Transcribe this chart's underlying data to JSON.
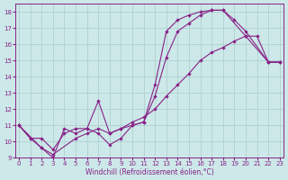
{
  "xlabel": "Windchill (Refroidissement éolien,°C)",
  "bg_color": "#cce8e8",
  "grid_color": "#aacccc",
  "line_color": "#882288",
  "xlim": [
    -0.3,
    23.3
  ],
  "ylim": [
    9.0,
    18.5
  ],
  "xticks": [
    0,
    1,
    2,
    3,
    4,
    5,
    6,
    7,
    8,
    9,
    10,
    11,
    12,
    13,
    14,
    15,
    16,
    17,
    18,
    19,
    20,
    21,
    22,
    23
  ],
  "yticks": [
    9,
    10,
    11,
    12,
    13,
    14,
    15,
    16,
    17,
    18
  ],
  "curve1_x": [
    0,
    1,
    2,
    3,
    4,
    5,
    6,
    7,
    8,
    9,
    10,
    11,
    12,
    13,
    14,
    15,
    16,
    17,
    18,
    20,
    22,
    23
  ],
  "curve1_y": [
    11.0,
    10.2,
    9.6,
    9.0,
    10.8,
    10.5,
    10.8,
    12.5,
    10.5,
    10.8,
    11.0,
    11.2,
    13.5,
    16.8,
    17.5,
    17.8,
    18.0,
    18.1,
    18.1,
    16.5,
    14.9,
    14.9
  ],
  "curve2_x": [
    0,
    1,
    2,
    3,
    4,
    5,
    6,
    7,
    8,
    9,
    10,
    11,
    12,
    13,
    14,
    15,
    16,
    17,
    18,
    19,
    20,
    22,
    23
  ],
  "curve2_y": [
    11.0,
    10.2,
    10.2,
    9.5,
    10.5,
    10.8,
    10.8,
    10.5,
    9.8,
    10.2,
    11.0,
    11.2,
    12.8,
    15.2,
    16.8,
    17.3,
    17.8,
    18.1,
    18.1,
    17.5,
    16.8,
    14.9,
    14.9
  ],
  "curve3_x": [
    0,
    2,
    3,
    5,
    6,
    7,
    8,
    9,
    10,
    11,
    12,
    13,
    14,
    15,
    16,
    17,
    18,
    19,
    20,
    21,
    22,
    23
  ],
  "curve3_y": [
    11.0,
    9.6,
    9.2,
    10.2,
    10.5,
    10.8,
    10.5,
    10.8,
    11.2,
    11.5,
    12.0,
    12.8,
    13.5,
    14.2,
    15.0,
    15.5,
    15.8,
    16.2,
    16.5,
    16.5,
    14.9,
    14.9
  ]
}
